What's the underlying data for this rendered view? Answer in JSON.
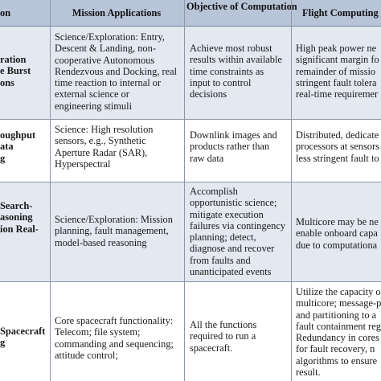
{
  "headers": {
    "col0": "on",
    "col1": "Mission Applications",
    "col2": [
      "Objective of",
      "Computation"
    ],
    "col3": "Flight Computing"
  },
  "rows": [
    {
      "category": [
        "ration",
        "e Burst",
        "ons"
      ],
      "applications": [
        "Science/Exploration: Entry,",
        "Descent & Landing, non-",
        "cooperative Autonomous",
        "Rendezvous and Docking, real",
        "time reaction to internal or",
        "external science or",
        "engineering stimuli"
      ],
      "objective": [
        "Achieve most robust",
        "results within available",
        "time constraints as",
        "input to control",
        "decisions"
      ],
      "computing": [
        "High peak power ne",
        "significant margin fo",
        "remainder of missio",
        "stringent fault tolera",
        "real-time requiremer"
      ]
    },
    {
      "category": [
        "oughput",
        "ata",
        "g"
      ],
      "applications": [
        "Science: High resolution",
        "sensors, e.g., Synthetic",
        "Aperture Radar (SAR),",
        "Hyperspectral"
      ],
      "objective": [
        "Downlink images and",
        "products rather than",
        "raw data"
      ],
      "computing": [
        "Distributed, dedicate",
        "processors at sensors",
        "less stringent fault to"
      ]
    },
    {
      "category": [
        "Search-",
        "asoning",
        "ion Real-"
      ],
      "applications": [
        "Science/Exploration: Mission",
        "planning, fault management,",
        "model-based reasoning"
      ],
      "objective": [
        "Accomplish",
        "opportunistic science;",
        "mitigate execution",
        "failures via contingency",
        "planning; detect,",
        "diagnose and recover",
        "from faults and",
        "unanticipated events"
      ],
      "computing": [
        "Multicore may be ne",
        "enable onboard capa",
        "due to computationa"
      ]
    },
    {
      "category": [
        "Spacecraft",
        "g"
      ],
      "applications": [
        "Core spacecraft functionality:",
        "Telecom; file system;",
        "commanding and sequencing;",
        "attitude control;"
      ],
      "objective": [
        "All the functions",
        "required to run a",
        "spacecraft."
      ],
      "computing": [
        "Utilize the capacity o",
        "multicore; message-p",
        "and partitioning to a",
        "fault containment reg",
        "Redundancy in cores",
        "for fault recovery, n",
        "algorithms to ensure",
        "result."
      ]
    }
  ]
}
